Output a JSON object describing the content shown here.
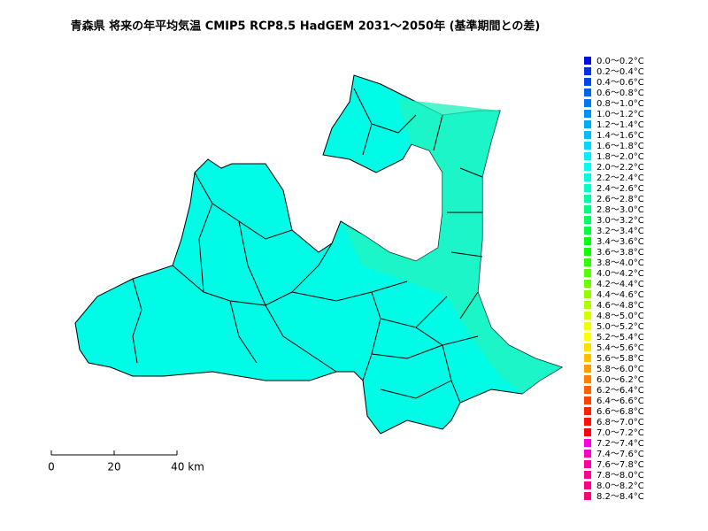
{
  "title": "青森県 将来の年平均気温 CMIP5 RCP8.5 HadGEM 2031～2050年 (基準期間との差)",
  "legend": {
    "labels": [
      "0.0～0.2°C",
      "0.2～0.4°C",
      "0.4～0.6°C",
      "0.6～0.8°C",
      "0.8～1.0°C",
      "1.0～1.2°C",
      "1.2～1.4°C",
      "1.4～1.6°C",
      "1.6～1.8°C",
      "1.8～2.0°C",
      "2.0～2.2°C",
      "2.2～2.4°C",
      "2.4～2.6°C",
      "2.6～2.8°C",
      "2.8～3.0°C",
      "3.0～3.2°C",
      "3.2～3.4°C",
      "3.4～3.6°C",
      "3.6～3.8°C",
      "3.8～4.0°C",
      "4.0～4.2°C",
      "4.2～4.4°C",
      "4.4～4.6°C",
      "4.6～4.8°C",
      "4.8～5.0°C",
      "5.0～5.2°C",
      "5.2～5.4°C",
      "5.4～5.6°C",
      "5.6～5.8°C",
      "5.8～6.0°C",
      "6.0～6.2°C",
      "6.2～6.4°C",
      "6.4～6.6°C",
      "6.6～6.8°C",
      "6.8～7.0°C",
      "7.0～7.2°C",
      "7.2～7.4°C",
      "7.4～7.6°C",
      "7.6～7.8°C",
      "7.8～8.0°C",
      "8.0～8.2°C",
      "8.2～8.4°C"
    ],
    "colors": [
      "#0010e0",
      "#0030e8",
      "#0048ec",
      "#0060f0",
      "#0078f0",
      "#0090f4",
      "#00a8f8",
      "#00c0fa",
      "#00d8fc",
      "#00f0fe",
      "#00fff0",
      "#00ffd8",
      "#00ffc0",
      "#00ffa0",
      "#00ff80",
      "#00ff60",
      "#00ff40",
      "#00ff20",
      "#10ff00",
      "#30ff00",
      "#50ff00",
      "#70ff00",
      "#90ff00",
      "#b0ff00",
      "#d0ff00",
      "#f0ff00",
      "#ffff00",
      "#ffe000",
      "#ffc000",
      "#ffa000",
      "#ff8000",
      "#ff6000",
      "#ff4000",
      "#ff2000",
      "#ff1000",
      "#ff0010",
      "#ff00e0",
      "#ff00c0",
      "#ff00a0",
      "#ff0090",
      "#ff0080",
      "#ff0070"
    ]
  },
  "scale_bar": {
    "labels": [
      "0",
      "20",
      "40 km"
    ]
  }
}
